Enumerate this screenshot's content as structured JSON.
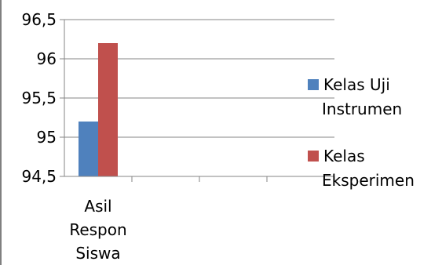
{
  "chart_data": {
    "type": "bar",
    "categories": [
      "Asil Respon Siswa"
    ],
    "category_lines": [
      [
        "Asil",
        "Respon",
        "Siswa"
      ]
    ],
    "series": [
      {
        "name": "Kelas Uji Instrumen",
        "name_lines": [
          "Kelas Uji",
          "Instrumen"
        ],
        "values": [
          95.2
        ],
        "color": "#4f81bd"
      },
      {
        "name": "Kelas Eksperimen",
        "name_lines": [
          "Kelas",
          "Eksperimen"
        ],
        "values": [
          96.2
        ],
        "color": "#c0504d"
      }
    ],
    "yticks": [
      "94,5",
      "95",
      "95,5",
      "96",
      "96,5"
    ],
    "ylim": [
      94.5,
      96.5
    ],
    "ystep": 0.5,
    "grid": true,
    "legend": "right",
    "axis_color": "#868686"
  }
}
